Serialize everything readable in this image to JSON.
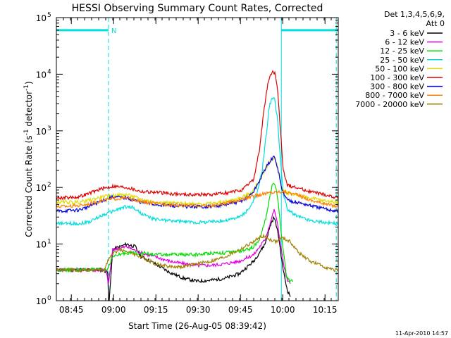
{
  "chart_data": {
    "type": "line",
    "title": "HESSI Observing Summary Count Rates, Corrected",
    "xlabel": "Start Time (26-Aug-05 08:39:42)",
    "ylabel_main": "Corrected Count Rate (s",
    "ylabel_sup1": "-1",
    "ylabel_mid": " detector",
    "ylabel_sup2": "-1",
    "ylabel_end": ")",
    "x_unit": "minutes after 08:39:42",
    "xlim": [
      0,
      100
    ],
    "ylim": [
      1,
      100000
    ],
    "yscale": "log",
    "x_ticks": [
      {
        "pos": 5.3,
        "label": "08:45"
      },
      {
        "pos": 20.3,
        "label": "09:00"
      },
      {
        "pos": 35.3,
        "label": "09:15"
      },
      {
        "pos": 50.3,
        "label": "09:30"
      },
      {
        "pos": 65.3,
        "label": "09:45"
      },
      {
        "pos": 80.3,
        "label": "10:00"
      },
      {
        "pos": 95.3,
        "label": "10:15"
      }
    ],
    "y_ticks": [
      {
        "val": 1,
        "base": "10",
        "exp": "0"
      },
      {
        "val": 10,
        "base": "10",
        "exp": "1"
      },
      {
        "val": 100,
        "base": "10",
        "exp": "2"
      },
      {
        "val": 1000,
        "base": "10",
        "exp": "3"
      },
      {
        "val": 10000,
        "base": "10",
        "exp": "4"
      },
      {
        "val": 100000,
        "base": "10",
        "exp": "5"
      }
    ],
    "legend_header": [
      "Det 1,3,4,5,6,9,",
      "Att 0"
    ],
    "legend_placement": "right",
    "night_bars": [
      {
        "x0": 0,
        "x1": 18.5,
        "y": 60000
      },
      {
        "x0": 79.8,
        "x1": 100,
        "y": 60000
      }
    ],
    "night_label": "N",
    "dashed_verticals": [
      18.5,
      99.3
    ],
    "solid_verticals": [
      79.8
    ],
    "series": [
      {
        "name": "3 - 6 keV",
        "color": "#000000",
        "points": [
          [
            0,
            3.5
          ],
          [
            10,
            3.5
          ],
          [
            16,
            3.5
          ],
          [
            18.3,
            3.2
          ],
          [
            18.5,
            0.5
          ],
          [
            19,
            1.5
          ],
          [
            20,
            8
          ],
          [
            25,
            10
          ],
          [
            28,
            9
          ],
          [
            30,
            6
          ],
          [
            35,
            4.5
          ],
          [
            40,
            3.2
          ],
          [
            45,
            2.5
          ],
          [
            50,
            2.2
          ],
          [
            55,
            2.3
          ],
          [
            60,
            2.5
          ],
          [
            65,
            3
          ],
          [
            70,
            5
          ],
          [
            74,
            10
          ],
          [
            76,
            22
          ],
          [
            77.2,
            30
          ],
          [
            78,
            22
          ],
          [
            79,
            12
          ],
          [
            80,
            5
          ],
          [
            81,
            2.5
          ],
          [
            82,
            1.5
          ],
          [
            83,
            1.2
          ]
        ]
      },
      {
        "name": "6 - 12 keV",
        "color": "#e000e0",
        "points": [
          [
            0,
            3.5
          ],
          [
            15,
            3.5
          ],
          [
            17.5,
            3.5
          ],
          [
            18.5,
            2
          ],
          [
            20,
            8
          ],
          [
            25,
            9
          ],
          [
            30,
            7
          ],
          [
            35,
            6
          ],
          [
            40,
            5
          ],
          [
            45,
            4.5
          ],
          [
            50,
            4.2
          ],
          [
            55,
            4.2
          ],
          [
            60,
            4.5
          ],
          [
            65,
            5
          ],
          [
            70,
            6.5
          ],
          [
            74,
            12
          ],
          [
            76,
            25
          ],
          [
            77.2,
            40
          ],
          [
            78,
            30
          ],
          [
            79,
            15
          ],
          [
            80,
            7
          ],
          [
            81,
            3.5
          ],
          [
            82,
            2.2
          ],
          [
            83,
            2
          ]
        ]
      },
      {
        "name": "12 - 25 keV",
        "color": "#00dd00",
        "points": [
          [
            0,
            3.5
          ],
          [
            10,
            3.5
          ],
          [
            18,
            3.5
          ],
          [
            20,
            6
          ],
          [
            25,
            7
          ],
          [
            30,
            7
          ],
          [
            35,
            6.5
          ],
          [
            40,
            6.5
          ],
          [
            45,
            6.5
          ],
          [
            50,
            6.5
          ],
          [
            55,
            7
          ],
          [
            60,
            7
          ],
          [
            65,
            7.5
          ],
          [
            68,
            8
          ],
          [
            70,
            9
          ],
          [
            72,
            12
          ],
          [
            74,
            25
          ],
          [
            75.5,
            60
          ],
          [
            76.5,
            110
          ],
          [
            77.2,
            120
          ],
          [
            78,
            90
          ],
          [
            79,
            40
          ],
          [
            80,
            12
          ],
          [
            81,
            5
          ],
          [
            81.8,
            2.5
          ],
          [
            83,
            2.2
          ],
          [
            84,
            2.2
          ]
        ]
      },
      {
        "name": "25 - 50 keV",
        "color": "#00dddd",
        "points": [
          [
            0,
            23
          ],
          [
            8,
            23
          ],
          [
            12,
            25
          ],
          [
            16,
            32
          ],
          [
            20,
            38
          ],
          [
            24,
            45
          ],
          [
            27,
            45
          ],
          [
            30,
            35
          ],
          [
            34,
            28
          ],
          [
            40,
            26
          ],
          [
            50,
            24
          ],
          [
            60,
            26
          ],
          [
            65,
            30
          ],
          [
            68,
            40
          ],
          [
            71,
            70
          ],
          [
            73,
            200
          ],
          [
            74.5,
            900
          ],
          [
            75.5,
            2600
          ],
          [
            76.5,
            3800
          ],
          [
            77.5,
            3500
          ],
          [
            78.5,
            1500
          ],
          [
            79.5,
            300
          ],
          [
            80.5,
            80
          ],
          [
            82,
            40
          ],
          [
            85,
            32
          ],
          [
            90,
            26
          ],
          [
            95,
            24
          ],
          [
            100,
            23
          ]
        ]
      },
      {
        "name": "50 - 100 keV",
        "color": "#dddd00",
        "points": [
          [
            0,
            55
          ],
          [
            8,
            55
          ],
          [
            12,
            60
          ],
          [
            16,
            68
          ],
          [
            20,
            72
          ],
          [
            25,
            75
          ],
          [
            30,
            62
          ],
          [
            35,
            55
          ],
          [
            45,
            52
          ],
          [
            55,
            52
          ],
          [
            60,
            56
          ],
          [
            65,
            64
          ],
          [
            68,
            75
          ],
          [
            70,
            90
          ],
          [
            72,
            130
          ],
          [
            74,
            210
          ],
          [
            76,
            300
          ],
          [
            77.2,
            330
          ],
          [
            78,
            280
          ],
          [
            79,
            170
          ],
          [
            80,
            95
          ],
          [
            82,
            80
          ],
          [
            85,
            75
          ],
          [
            90,
            65
          ],
          [
            95,
            58
          ],
          [
            100,
            55
          ]
        ]
      },
      {
        "name": "100 - 300 keV",
        "color": "#dd0000",
        "points": [
          [
            0,
            65
          ],
          [
            8,
            68
          ],
          [
            12,
            80
          ],
          [
            16,
            95
          ],
          [
            20,
            105
          ],
          [
            25,
            100
          ],
          [
            30,
            85
          ],
          [
            35,
            82
          ],
          [
            45,
            75
          ],
          [
            55,
            75
          ],
          [
            62,
            82
          ],
          [
            66,
            90
          ],
          [
            70,
            140
          ],
          [
            72,
            450
          ],
          [
            73.5,
            2000
          ],
          [
            75,
            7000
          ],
          [
            76.5,
            11000
          ],
          [
            77.5,
            10500
          ],
          [
            78.5,
            5000
          ],
          [
            79.5,
            1000
          ],
          [
            80.5,
            200
          ],
          [
            82,
            110
          ],
          [
            85,
            100
          ],
          [
            90,
            85
          ],
          [
            95,
            75
          ],
          [
            100,
            65
          ]
        ]
      },
      {
        "name": "300 - 800 keV",
        "color": "#0000dd",
        "points": [
          [
            0,
            38
          ],
          [
            8,
            40
          ],
          [
            12,
            47
          ],
          [
            16,
            58
          ],
          [
            20,
            68
          ],
          [
            25,
            65
          ],
          [
            30,
            55
          ],
          [
            35,
            50
          ],
          [
            45,
            46
          ],
          [
            55,
            46
          ],
          [
            60,
            50
          ],
          [
            65,
            56
          ],
          [
            68,
            68
          ],
          [
            70,
            85
          ],
          [
            72,
            130
          ],
          [
            74,
            210
          ],
          [
            76,
            300
          ],
          [
            77.2,
            350
          ],
          [
            78,
            280
          ],
          [
            79,
            170
          ],
          [
            80,
            90
          ],
          [
            82,
            60
          ],
          [
            85,
            55
          ],
          [
            90,
            48
          ],
          [
            95,
            42
          ],
          [
            100,
            38
          ]
        ]
      },
      {
        "name": "800 - 7000 keV",
        "color": "#ff8000",
        "points": [
          [
            0,
            46
          ],
          [
            8,
            48
          ],
          [
            12,
            52
          ],
          [
            16,
            58
          ],
          [
            20,
            63
          ],
          [
            25,
            65
          ],
          [
            30,
            56
          ],
          [
            35,
            52
          ],
          [
            45,
            48
          ],
          [
            55,
            47
          ],
          [
            60,
            52
          ],
          [
            65,
            60
          ],
          [
            70,
            70
          ],
          [
            74,
            78
          ],
          [
            77,
            82
          ],
          [
            80,
            85
          ],
          [
            83,
            80
          ],
          [
            86,
            72
          ],
          [
            90,
            60
          ],
          [
            95,
            52
          ],
          [
            100,
            46
          ]
        ]
      },
      {
        "name": "7000 - 20000 keV",
        "color": "#a08000",
        "points": [
          [
            0,
            3.5
          ],
          [
            10,
            3.5
          ],
          [
            17,
            3.5
          ],
          [
            19,
            6
          ],
          [
            22,
            8
          ],
          [
            25,
            7.5
          ],
          [
            30,
            6
          ],
          [
            35,
            4.5
          ],
          [
            40,
            4
          ],
          [
            45,
            4
          ],
          [
            50,
            4.5
          ],
          [
            55,
            5
          ],
          [
            60,
            6
          ],
          [
            65,
            8
          ],
          [
            70,
            11
          ],
          [
            73,
            14
          ],
          [
            76,
            12
          ],
          [
            78,
            11
          ],
          [
            80,
            13
          ],
          [
            83,
            11
          ],
          [
            86,
            7
          ],
          [
            90,
            5
          ],
          [
            95,
            4
          ],
          [
            98,
            3.5
          ],
          [
            100,
            3.5
          ]
        ]
      }
    ]
  },
  "footer": {
    "timestamp": "11-Apr-2010 14:57"
  }
}
